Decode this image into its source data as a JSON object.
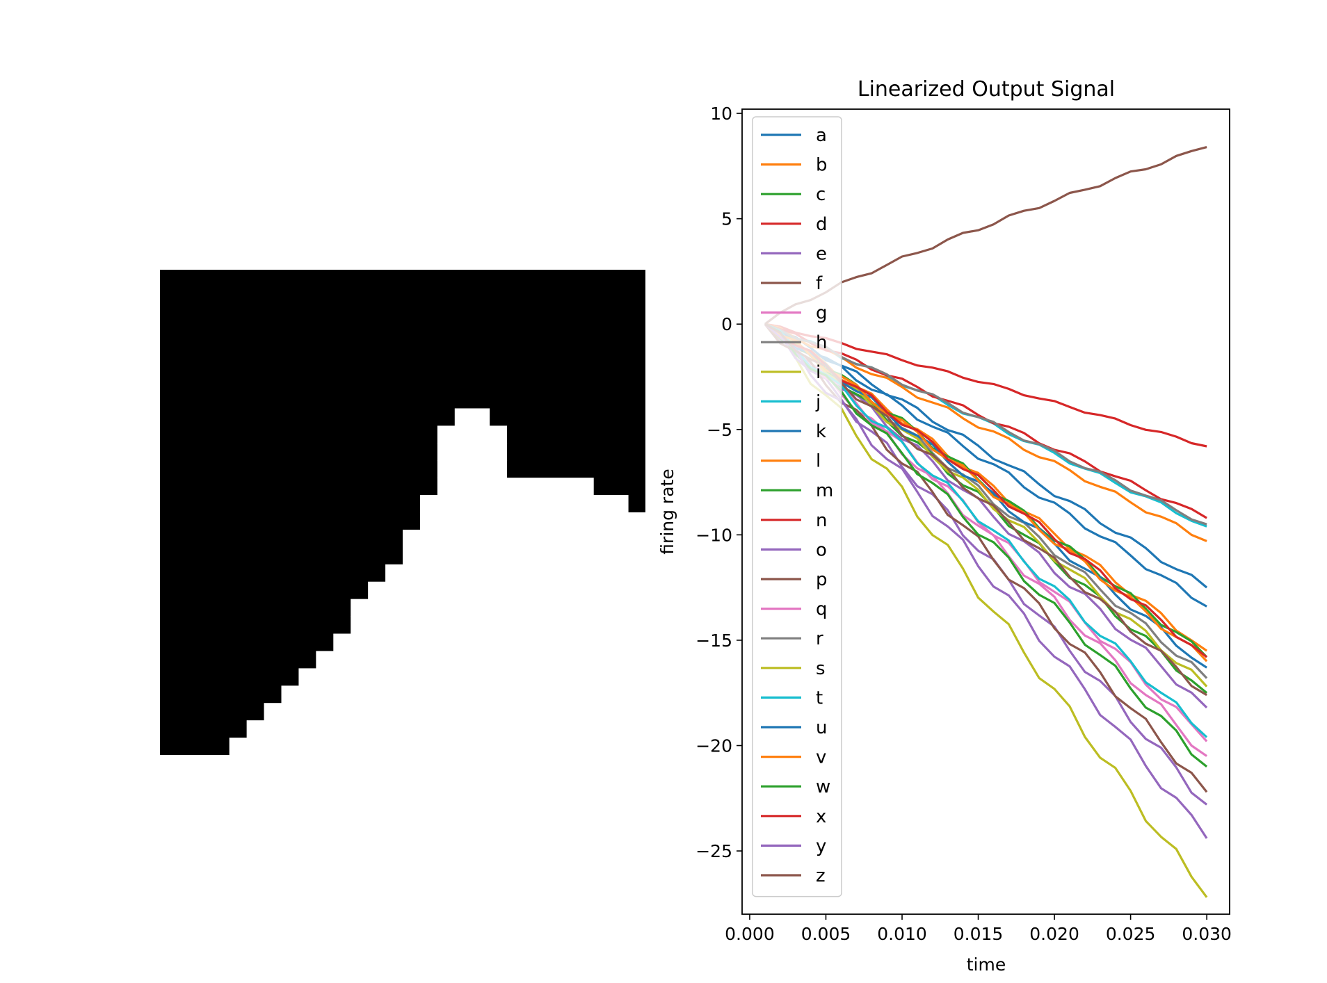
{
  "image_panel": {
    "grid_size": 28,
    "mask_rows": [
      "0000000000000000000000000000",
      "0000000000000000000000000000",
      "0000000000000000000000000000",
      "0000000000000000000000000000",
      "0000000000000000000000000000",
      "0000000000000000000000000000",
      "0000000000000000000000000000",
      "0000000000000000000000000000",
      "0000000000000000011000000000",
      "0000000000000000111100000000",
      "0000000000000000111100000000",
      "0000000000000000111100000000",
      "0000000000000000111111111000",
      "0000000000000001111111111110",
      "0000000000000001111111111111",
      "0000000000000011111111111111",
      "0000000000000011111111111111",
      "0000000000000111111111111111",
      "0000000000001111111111111111",
      "0000000000011111111111111111",
      "0000000000011111111111111111",
      "0000000000111111111111111111",
      "0000000001111111111111111111",
      "0000000011111111111111111111",
      "0000000111111111111111111111",
      "0000001111111111111111111111",
      "0000011111111111111111111111",
      "0000111111111111111111111111"
    ],
    "colors": {
      "background": "#000000",
      "shape": "#ffffff"
    }
  },
  "chart_data": {
    "type": "line",
    "title": "Linearized Output Signal",
    "xlabel": "time",
    "ylabel": "firing rate",
    "xlim": [
      -0.0005,
      0.0315
    ],
    "ylim": [
      -28.0,
      10.2
    ],
    "xticks": [
      0.0,
      0.005,
      0.01,
      0.015,
      0.02,
      0.025,
      0.03
    ],
    "xtick_labels": [
      "0.000",
      "0.005",
      "0.010",
      "0.015",
      "0.020",
      "0.025",
      "0.030"
    ],
    "yticks": [
      10,
      5,
      0,
      -5,
      -10,
      -15,
      -20,
      -25
    ],
    "ytick_labels": [
      "10",
      "5",
      "0",
      "−5",
      "−10",
      "−15",
      "−20",
      "−25"
    ],
    "legend_position": "upper-left",
    "grid": false,
    "x_range": {
      "start": 0.001,
      "end": 0.03,
      "step": 0.001
    },
    "series": [
      {
        "name": "a",
        "color": "#1f77b4",
        "end_value": -13.4
      },
      {
        "name": "b",
        "color": "#ff7f0e",
        "end_value": -15.5
      },
      {
        "name": "c",
        "color": "#2ca02c",
        "end_value": -15.8
      },
      {
        "name": "d",
        "color": "#d62728",
        "end_value": -5.8
      },
      {
        "name": "e",
        "color": "#9467bd",
        "end_value": -18.2
      },
      {
        "name": "f",
        "color": "#8c564b",
        "end_value": 8.4
      },
      {
        "name": "g",
        "color": "#e377c2",
        "end_value": -20.5
      },
      {
        "name": "h",
        "color": "#7f7f7f",
        "end_value": -16.8
      },
      {
        "name": "i",
        "color": "#bcbd22",
        "end_value": -27.2
      },
      {
        "name": "j",
        "color": "#17becf",
        "end_value": -9.6
      },
      {
        "name": "k",
        "color": "#1f77b4",
        "end_value": -12.5
      },
      {
        "name": "l",
        "color": "#ff7f0e",
        "end_value": -10.3
      },
      {
        "name": "m",
        "color": "#2ca02c",
        "end_value": -17.5
      },
      {
        "name": "n",
        "color": "#d62728",
        "end_value": -9.2
      },
      {
        "name": "o",
        "color": "#9467bd",
        "end_value": -22.8
      },
      {
        "name": "p",
        "color": "#8c564b",
        "end_value": -22.2
      },
      {
        "name": "q",
        "color": "#e377c2",
        "end_value": -19.8
      },
      {
        "name": "r",
        "color": "#7f7f7f",
        "end_value": -9.5
      },
      {
        "name": "s",
        "color": "#bcbd22",
        "end_value": -17.2
      },
      {
        "name": "t",
        "color": "#17becf",
        "end_value": -19.6
      },
      {
        "name": "u",
        "color": "#1f77b4",
        "end_value": -16.3
      },
      {
        "name": "v",
        "color": "#ff7f0e",
        "end_value": -16.0
      },
      {
        "name": "w",
        "color": "#2ca02c",
        "end_value": -21.0
      },
      {
        "name": "x",
        "color": "#d62728",
        "end_value": -15.8
      },
      {
        "name": "y",
        "color": "#9467bd",
        "end_value": -24.4
      },
      {
        "name": "z",
        "color": "#8c564b",
        "end_value": -17.6
      }
    ]
  }
}
